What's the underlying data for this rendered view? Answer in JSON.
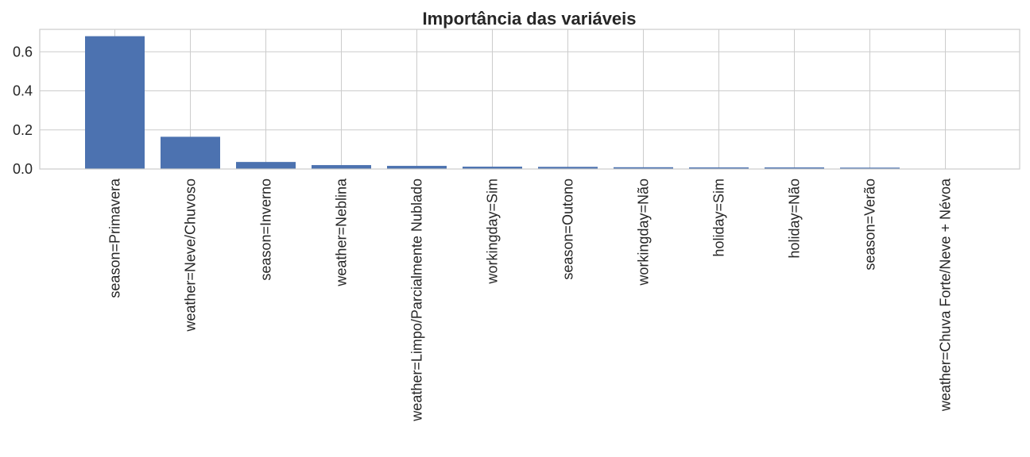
{
  "chart_data": {
    "type": "bar",
    "title": "Importância das variáveis",
    "xlabel": "",
    "ylabel": "",
    "categories": [
      "season=Primavera",
      "weather=Neve/Chuvoso",
      "season=Inverno",
      "weather=Neblina",
      "weather=Limpo/Parcialmente Nublado",
      "workingday=Sim",
      "season=Outono",
      "workingday=Não",
      "holiday=Sim",
      "holiday=Não",
      "season=Verão",
      "weather=Chuva Forte/Neve + Névoa"
    ],
    "values": [
      0.68,
      0.165,
      0.036,
      0.02,
      0.016,
      0.012,
      0.011,
      0.009,
      0.008,
      0.008,
      0.007,
      0.0
    ],
    "ylim": [
      0,
      0.715
    ],
    "yticks": [
      "0.0",
      "0.2",
      "0.4",
      "0.6"
    ],
    "grid": true,
    "bar_color": "#4c72b0",
    "grid_color": "#cccccc",
    "text_color": "#262626"
  }
}
